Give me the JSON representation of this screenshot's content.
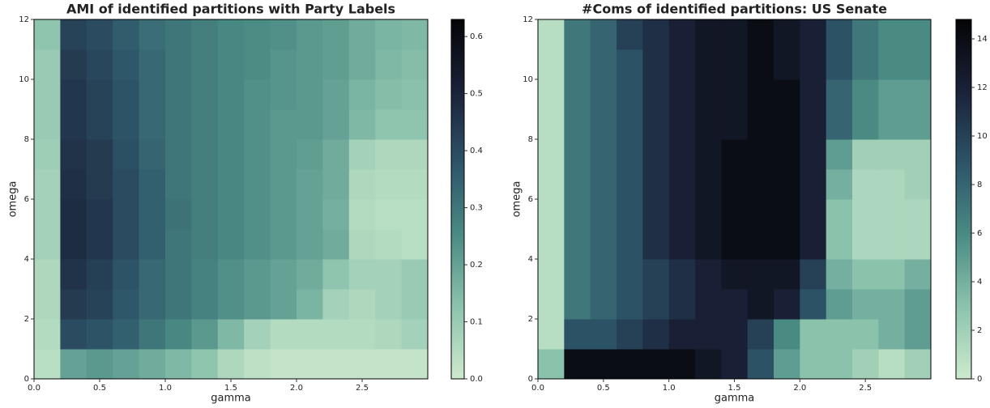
{
  "chart_data": [
    {
      "type": "heatmap",
      "title": "AMI of identified partitions with Party Labels",
      "xlabel": "gamma",
      "ylabel": "omega",
      "xbins": [
        0,
        0.2,
        0.4,
        0.6,
        0.8,
        1.0,
        1.2,
        1.4,
        1.6,
        1.8,
        2.0,
        2.2,
        2.4,
        2.6,
        2.8,
        3.0
      ],
      "ybins": [
        0,
        1,
        2,
        3,
        4,
        5,
        6,
        7,
        8,
        9,
        10,
        11,
        12
      ],
      "values": [
        [
          0.04,
          0.2,
          0.22,
          0.2,
          0.18,
          0.15,
          0.12,
          0.06,
          0.03,
          0.02,
          0.02,
          0.02,
          0.02,
          0.02,
          0.02
        ],
        [
          0.05,
          0.4,
          0.38,
          0.35,
          0.3,
          0.26,
          0.22,
          0.15,
          0.08,
          0.05,
          0.05,
          0.05,
          0.05,
          0.06,
          0.08
        ],
        [
          0.06,
          0.44,
          0.42,
          0.37,
          0.33,
          0.3,
          0.27,
          0.24,
          0.22,
          0.2,
          0.16,
          0.08,
          0.06,
          0.08,
          0.1
        ],
        [
          0.06,
          0.46,
          0.43,
          0.38,
          0.33,
          0.3,
          0.27,
          0.24,
          0.22,
          0.2,
          0.18,
          0.12,
          0.08,
          0.08,
          0.1
        ],
        [
          0.08,
          0.48,
          0.45,
          0.4,
          0.35,
          0.3,
          0.28,
          0.26,
          0.24,
          0.22,
          0.2,
          0.18,
          0.06,
          0.05,
          0.04
        ],
        [
          0.08,
          0.48,
          0.45,
          0.4,
          0.35,
          0.31,
          0.28,
          0.26,
          0.24,
          0.22,
          0.2,
          0.17,
          0.05,
          0.04,
          0.04
        ],
        [
          0.08,
          0.47,
          0.44,
          0.4,
          0.35,
          0.3,
          0.28,
          0.26,
          0.24,
          0.22,
          0.2,
          0.18,
          0.06,
          0.05,
          0.05
        ],
        [
          0.09,
          0.46,
          0.44,
          0.39,
          0.34,
          0.3,
          0.28,
          0.26,
          0.24,
          0.22,
          0.21,
          0.18,
          0.08,
          0.06,
          0.06
        ],
        [
          0.1,
          0.45,
          0.42,
          0.38,
          0.33,
          0.3,
          0.28,
          0.26,
          0.24,
          0.22,
          0.22,
          0.2,
          0.15,
          0.12,
          0.12
        ],
        [
          0.1,
          0.45,
          0.42,
          0.38,
          0.33,
          0.3,
          0.28,
          0.26,
          0.24,
          0.23,
          0.22,
          0.2,
          0.16,
          0.14,
          0.13
        ],
        [
          0.1,
          0.44,
          0.41,
          0.37,
          0.33,
          0.3,
          0.28,
          0.26,
          0.25,
          0.23,
          0.22,
          0.21,
          0.18,
          0.15,
          0.14
        ],
        [
          0.12,
          0.42,
          0.4,
          0.36,
          0.32,
          0.3,
          0.28,
          0.26,
          0.25,
          0.24,
          0.22,
          0.21,
          0.18,
          0.16,
          0.15
        ]
      ],
      "xlim": [
        0,
        3.0
      ],
      "ylim": [
        0,
        12
      ],
      "xticks": [
        {
          "value": 0,
          "label": "0.0"
        },
        {
          "value": 0.5,
          "label": "0.5"
        },
        {
          "value": 1,
          "label": "1.0"
        },
        {
          "value": 1.5,
          "label": "1.5"
        },
        {
          "value": 2,
          "label": "2.0"
        },
        {
          "value": 2.5,
          "label": "2.5"
        }
      ],
      "yticks": [
        0,
        2,
        4,
        6,
        8,
        10,
        12
      ],
      "clim": [
        0,
        0.63
      ],
      "cticks": [
        {
          "value": 0,
          "label": "0.0"
        },
        0.1,
        0.2,
        0.3,
        0.4,
        0.5,
        0.6
      ],
      "colormap": [
        "#cdeacd",
        "#8cc3ad",
        "#4a8b84",
        "#2d5468",
        "#1a2238",
        "#050508"
      ]
    },
    {
      "type": "heatmap",
      "title": "#Coms of identified partitions: US Senate",
      "xlabel": "gamma",
      "ylabel": "omega",
      "xbins": [
        0,
        0.2,
        0.4,
        0.6,
        0.8,
        1.0,
        1.2,
        1.4,
        1.6,
        1.8,
        2.0,
        2.2,
        2.4,
        2.6,
        2.8,
        3.0
      ],
      "ybins": [
        0,
        1,
        2,
        3,
        4,
        5,
        6,
        7,
        8,
        9,
        10,
        11,
        12
      ],
      "values": [
        [
          3,
          14,
          14,
          14,
          14,
          14,
          13,
          12,
          9,
          5,
          3,
          3,
          2,
          1,
          2
        ],
        [
          1,
          9,
          9,
          10,
          11,
          12,
          12,
          12,
          10,
          6,
          3,
          3,
          3,
          4,
          5
        ],
        [
          1,
          7,
          8,
          9,
          10,
          11,
          12,
          12,
          13,
          12,
          9,
          5,
          4,
          4,
          5
        ],
        [
          1,
          7,
          8,
          9,
          10,
          11,
          12,
          13,
          13,
          13,
          10,
          4,
          3,
          3,
          4
        ],
        [
          1,
          7,
          8,
          9,
          11,
          12,
          13,
          14,
          14,
          14,
          12,
          3,
          1.5,
          1.5,
          1.5
        ],
        [
          1,
          7,
          8,
          9,
          11,
          12,
          13,
          14,
          14,
          14,
          12,
          3,
          1.5,
          1.5,
          1.5
        ],
        [
          1,
          7,
          8,
          9,
          11,
          12,
          13,
          14,
          14,
          14,
          12,
          4,
          1.5,
          1.5,
          2
        ],
        [
          1,
          7,
          8,
          9,
          11,
          12,
          13,
          14,
          14,
          14,
          12,
          5,
          2,
          2,
          2
        ],
        [
          1,
          7,
          8,
          9,
          11,
          12,
          13,
          13,
          14,
          14,
          12,
          8,
          6,
          5,
          5
        ],
        [
          1,
          7,
          8,
          9,
          11,
          12,
          13,
          13,
          14,
          14,
          12,
          8,
          6,
          5,
          5
        ],
        [
          1,
          7,
          8,
          9,
          11,
          12,
          13,
          13,
          14,
          13,
          12,
          9,
          7,
          6,
          6
        ],
        [
          1,
          7,
          8,
          10,
          11,
          12,
          13,
          13,
          14,
          13,
          12,
          9,
          7,
          6,
          6
        ]
      ],
      "xlim": [
        0,
        3.0
      ],
      "ylim": [
        0,
        12
      ],
      "xticks": [
        {
          "value": 0,
          "label": "0.0"
        },
        {
          "value": 0.5,
          "label": "0.5"
        },
        {
          "value": 1,
          "label": "1.0"
        },
        {
          "value": 1.5,
          "label": "1.5"
        },
        {
          "value": 2,
          "label": "2.0"
        },
        {
          "value": 2.5,
          "label": "2.5"
        }
      ],
      "yticks": [
        0,
        2,
        4,
        6,
        8,
        10,
        12
      ],
      "clim": [
        0,
        14.8
      ],
      "cticks": [
        0,
        2,
        4,
        6,
        8,
        10,
        12,
        14
      ],
      "colormap": [
        "#cdeacd",
        "#8cc3ad",
        "#4a8b84",
        "#2d5468",
        "#1a2238",
        "#050508"
      ]
    }
  ]
}
